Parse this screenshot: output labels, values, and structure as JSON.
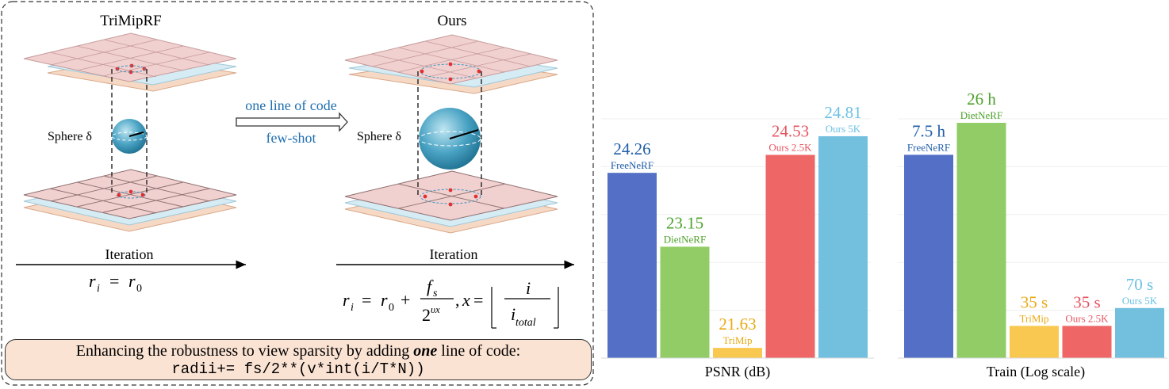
{
  "diagram": {
    "left_title": "TriMipRF",
    "right_title": "Ours",
    "sphere_label_left": "Sphere δ",
    "sphere_label_right": "Sphere δ",
    "arrow_top": "one line of code",
    "arrow_bottom": "few-shot",
    "iteration_left": "Iteration",
    "iteration_right": "Iteration",
    "formula_left": "r_i = r_0",
    "formula_right": "r_i = r_0 + f_s / 2^(υx), x = ⌊ i / i_total ⌋"
  },
  "banner": {
    "line1_prefix": "Enhancing the robustness to view sparsity by adding ",
    "line1_emph": "one",
    "line1_suffix": " line of code:",
    "code": "radii+= fs/2**(v*int(i/T*N))"
  },
  "colors": {
    "FreeNeRF": "#5470c6",
    "DietNeRF": "#91cc66",
    "TriMip": "#f9c851",
    "Ours 2.5K": "#ee6666",
    "Ours 5K": "#72bfde",
    "value_FreeNeRF": "#1f5ea8",
    "value_DietNeRF": "#4da22b",
    "value_TriMip": "#e9a914",
    "value_Ours 2.5K": "#e65461",
    "value_Ours 5K": "#6cc1e6"
  },
  "chart_data": [
    {
      "type": "bar",
      "xlabel": "PSNR (dB)",
      "categories": [
        "FreeNeRF",
        "DietNeRF",
        "TriMip",
        "Ours 2.5K",
        "Ours 5K"
      ],
      "values": [
        24.26,
        23.15,
        21.63,
        24.53,
        24.81
      ],
      "value_labels": [
        "24.26",
        "23.15",
        "21.63",
        "24.53",
        "24.81"
      ],
      "ylim": [
        21.5,
        25.0
      ],
      "grid": true
    },
    {
      "type": "bar",
      "xlabel": "Train (Log scale)",
      "scale": "log",
      "categories": [
        "FreeNeRF",
        "DietNeRF",
        "TriMip",
        "Ours 2.5K",
        "Ours 5K"
      ],
      "values_seconds": [
        27000,
        93600,
        35,
        35,
        70
      ],
      "value_labels": [
        "7.5 h",
        "26 h",
        "35 s",
        "35 s",
        "70 s"
      ],
      "ylim": [
        10,
        93600
      ],
      "grid": true
    }
  ]
}
